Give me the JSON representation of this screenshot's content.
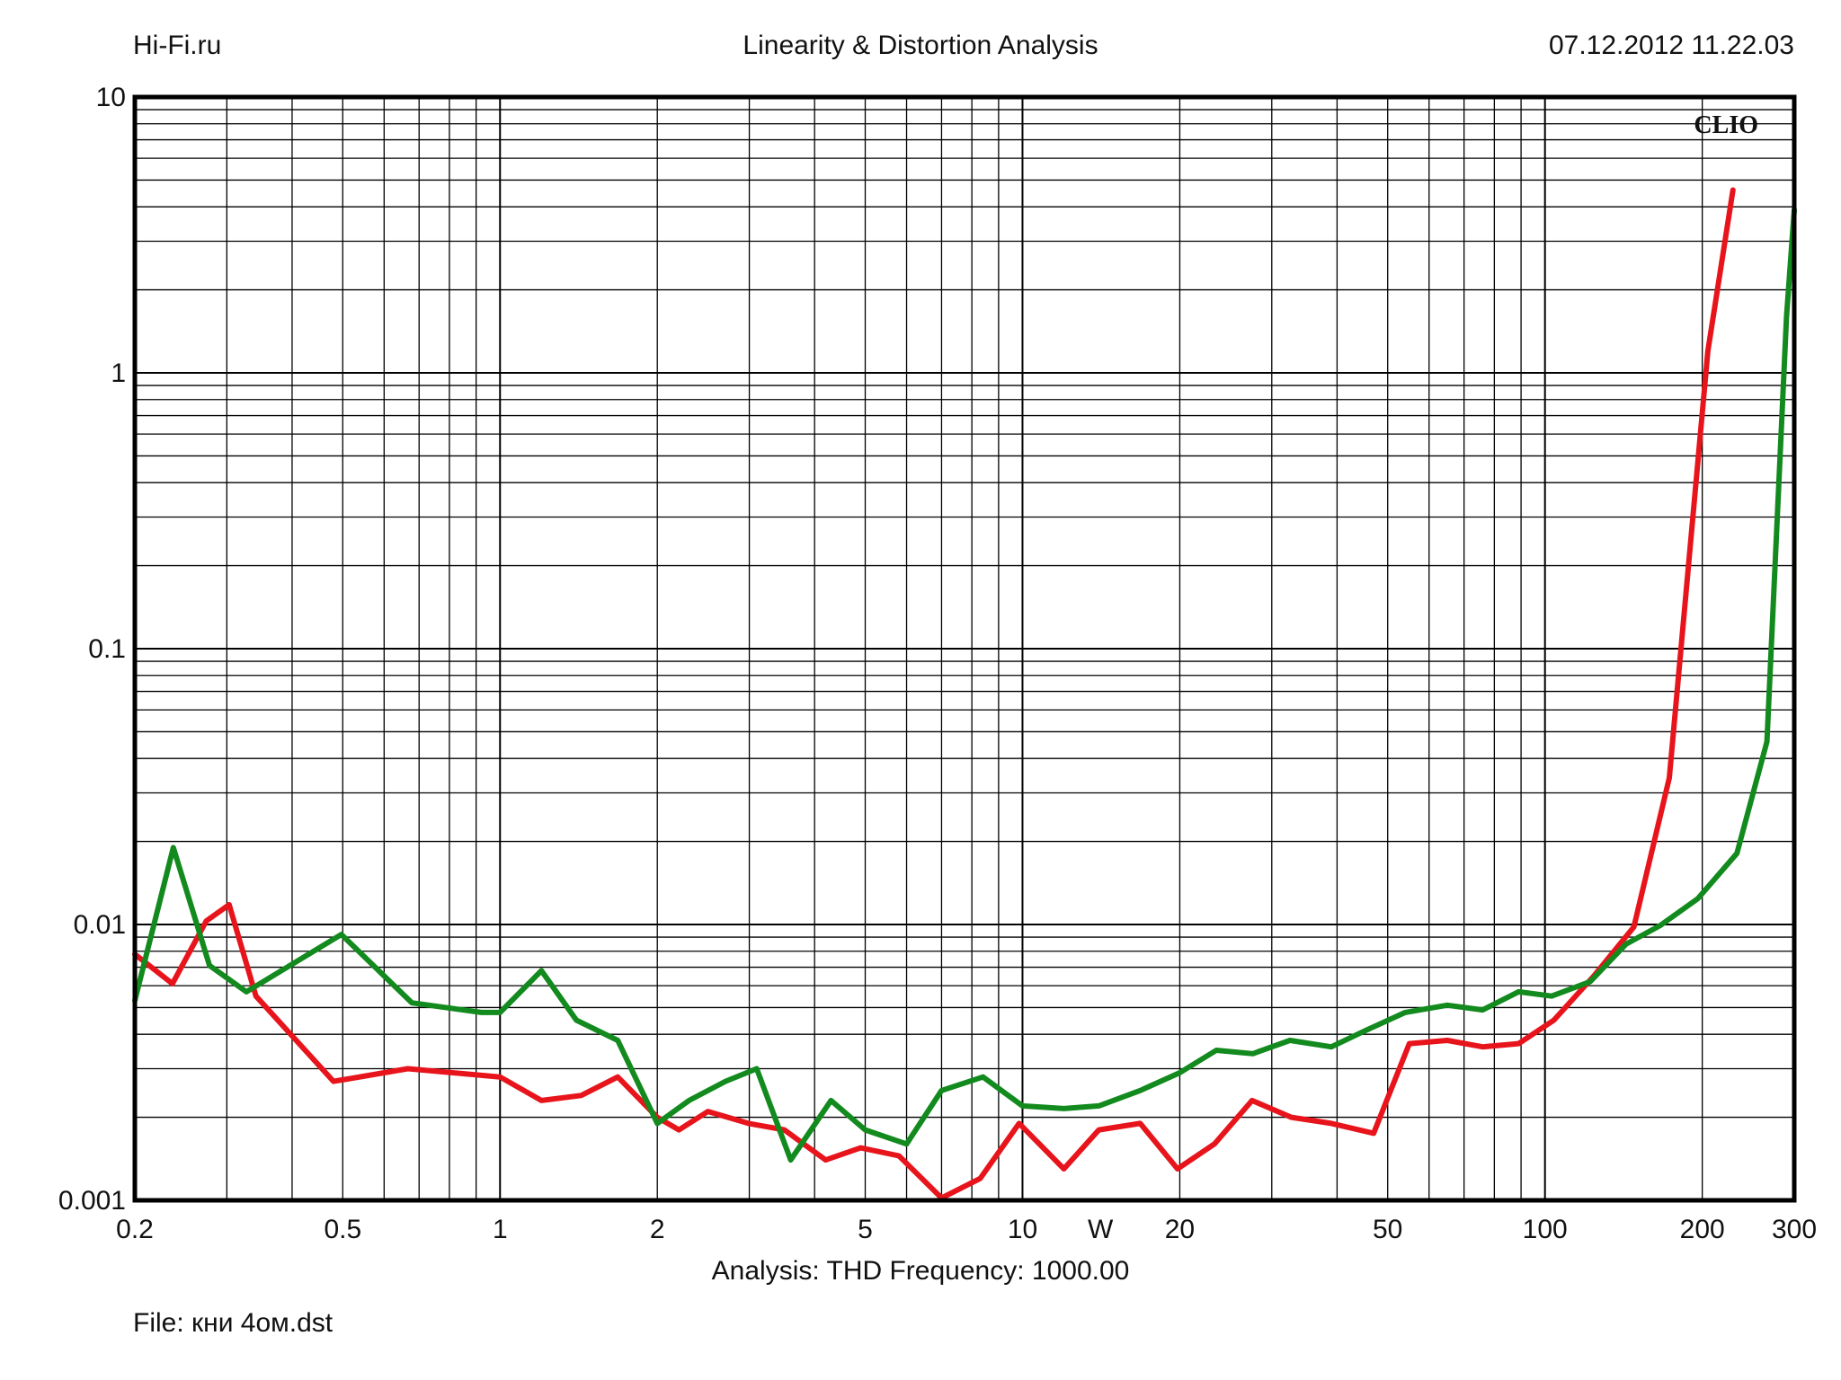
{
  "header": {
    "site": "Hi-Fi.ru",
    "title": "Linearity & Distortion Analysis",
    "timestamp": "07.12.2012 11.22.03"
  },
  "brand": "CLIO",
  "footer": {
    "analysis": "Analysis: THD   Frequency: 1000.00",
    "file": "File: кни 4ом.dst"
  },
  "chart_data": {
    "type": "line",
    "title": "Linearity & Distortion Analysis",
    "xlabel": "W",
    "ylabel": "",
    "x_scale": "log",
    "y_scale": "log",
    "xlim": [
      0.2,
      300
    ],
    "ylim": [
      0.001,
      10
    ],
    "grid": true,
    "x_ticks": [
      {
        "value": 0.2,
        "label": "0.2"
      },
      {
        "value": 0.5,
        "label": "0.5"
      },
      {
        "value": 1,
        "label": "1"
      },
      {
        "value": 2,
        "label": "2"
      },
      {
        "value": 5,
        "label": "5"
      },
      {
        "value": 10,
        "label": "10"
      },
      {
        "value": 20,
        "label": "20"
      },
      {
        "value": 50,
        "label": "50"
      },
      {
        "value": 100,
        "label": "100"
      },
      {
        "value": 200,
        "label": "200"
      },
      {
        "value": 300,
        "label": "300"
      }
    ],
    "y_ticks": [
      {
        "value": 10,
        "label": "10"
      },
      {
        "value": 1,
        "label": "1"
      },
      {
        "value": 0.1,
        "label": "0.1"
      },
      {
        "value": 0.01,
        "label": "0.01"
      },
      {
        "value": 0.001,
        "label": "0.001"
      }
    ],
    "series": [
      {
        "color": "#e8141c",
        "points": [
          [
            0.2,
            0.0078
          ],
          [
            0.236,
            0.0061
          ],
          [
            0.274,
            0.0103
          ],
          [
            0.303,
            0.0118
          ],
          [
            0.341,
            0.0055
          ],
          [
            0.48,
            0.0027
          ],
          [
            0.666,
            0.003
          ],
          [
            1.0,
            0.0028
          ],
          [
            1.2,
            0.0023
          ],
          [
            1.43,
            0.0024
          ],
          [
            1.68,
            0.0028
          ],
          [
            2.0,
            0.002
          ],
          [
            2.2,
            0.0018
          ],
          [
            2.5,
            0.0021
          ],
          [
            2.99,
            0.0019
          ],
          [
            3.5,
            0.0018
          ],
          [
            4.2,
            0.0014
          ],
          [
            4.9,
            0.00155
          ],
          [
            5.8,
            0.00145
          ],
          [
            7.0,
            0.00102
          ],
          [
            8.3,
            0.0012
          ],
          [
            9.85,
            0.0019
          ],
          [
            12.0,
            0.0013
          ],
          [
            14.0,
            0.0018
          ],
          [
            16.8,
            0.0019
          ],
          [
            19.8,
            0.0013
          ],
          [
            23.3,
            0.0016
          ],
          [
            27.5,
            0.0023
          ],
          [
            32.7,
            0.002
          ],
          [
            39.0,
            0.0019
          ],
          [
            47.0,
            0.00175
          ],
          [
            55.0,
            0.0037
          ],
          [
            65.0,
            0.0038
          ],
          [
            76.0,
            0.0036
          ],
          [
            89.0,
            0.0037
          ],
          [
            104.0,
            0.0045
          ],
          [
            124.0,
            0.0065
          ],
          [
            148.0,
            0.0098
          ],
          [
            173.0,
            0.034
          ],
          [
            205.0,
            1.2
          ],
          [
            229.0,
            4.6
          ]
        ]
      },
      {
        "color": "#128a1e",
        "points": [
          [
            0.2,
            0.0053
          ],
          [
            0.237,
            0.019
          ],
          [
            0.278,
            0.0071
          ],
          [
            0.327,
            0.0057
          ],
          [
            0.497,
            0.0092
          ],
          [
            0.678,
            0.0052
          ],
          [
            0.921,
            0.0048
          ],
          [
            1.0,
            0.0048
          ],
          [
            1.2,
            0.0068
          ],
          [
            1.4,
            0.0045
          ],
          [
            1.68,
            0.0038
          ],
          [
            2.0,
            0.0019
          ],
          [
            2.3,
            0.0023
          ],
          [
            2.7,
            0.0027
          ],
          [
            3.1,
            0.003
          ],
          [
            3.6,
            0.0014
          ],
          [
            4.3,
            0.0023
          ],
          [
            5.0,
            0.0018
          ],
          [
            6.0,
            0.0016
          ],
          [
            7.0,
            0.0025
          ],
          [
            8.4,
            0.0028
          ],
          [
            10.0,
            0.0022
          ],
          [
            12.0,
            0.00215
          ],
          [
            14.0,
            0.0022
          ],
          [
            16.8,
            0.0025
          ],
          [
            20.0,
            0.0029
          ],
          [
            23.5,
            0.0035
          ],
          [
            27.6,
            0.0034
          ],
          [
            32.5,
            0.0038
          ],
          [
            39.0,
            0.0036
          ],
          [
            45.0,
            0.0041
          ],
          [
            54.0,
            0.0048
          ],
          [
            65.0,
            0.0051
          ],
          [
            76.0,
            0.0049
          ],
          [
            89.0,
            0.0057
          ],
          [
            103.0,
            0.0055
          ],
          [
            122.0,
            0.0062
          ],
          [
            143.0,
            0.0085
          ],
          [
            166.0,
            0.0099
          ],
          [
            196.0,
            0.0124
          ],
          [
            233.0,
            0.0181
          ],
          [
            266.0,
            0.046
          ],
          [
            290.0,
            1.6
          ],
          [
            300.0,
            3.9
          ]
        ]
      }
    ]
  }
}
